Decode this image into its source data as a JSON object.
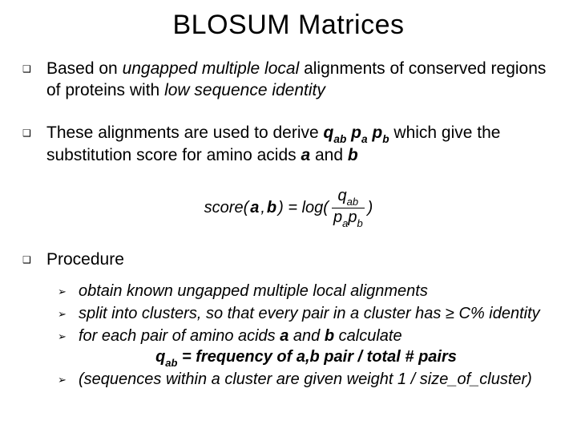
{
  "title": "BLOSUM Matrices",
  "bullets": {
    "marker": "❑",
    "b1_pre": "Based on ",
    "b1_i1": "ungapped multiple local",
    "b1_mid": " alignments of conserved regions of proteins with ",
    "b1_i2": "low sequence identity",
    "b2_pre": "These alignments are used to derive ",
    "b2_q": "q",
    "b2_ab": "ab",
    "b2_sp1": "   ",
    "b2_p1": "p",
    "b2_a": "a",
    "b2_sp2": "   ",
    "b2_p2": "p",
    "b2_b": "b",
    "b2_mid": " which give the substitution score for amino acids ",
    "b2_abold": "a",
    "b2_and": " and ",
    "b2_bbold": "b",
    "b3": "Procedure"
  },
  "formula": {
    "lhs_score": "score(",
    "lhs_a": "a",
    "lhs_comma": ",  ",
    "lhs_b": "b",
    "lhs_close": ") = log(",
    "top_q": "q",
    "top_ab": "ab",
    "bot_p1": "p",
    "bot_a": "a",
    "bot_p2": "p",
    "bot_b": "b",
    "rparen": ")"
  },
  "sub": {
    "marker": "➢",
    "s1": "obtain known ungapped multiple local alignments",
    "s2": "split into clusters, so that every pair in a cluster has ≥  C% identity",
    "s3_pre": "for each pair of amino acids ",
    "s3_a": "a",
    "s3_and": " and ",
    "s3_b": "b",
    "s3_post": " calculate",
    "center_q": "q",
    "center_ab": "ab",
    "center_rest": " = frequency of a,b pair /  total # pairs",
    "s4": "(sequences within a cluster are given weight 1 / size_of_cluster)"
  },
  "colors": {
    "text": "#000000",
    "bg": "#ffffff"
  }
}
